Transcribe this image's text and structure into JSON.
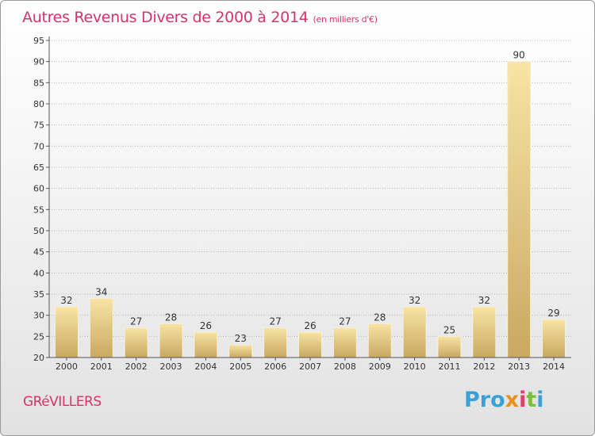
{
  "header": {
    "title": "Autres Revenus Divers de 2000 à 2014",
    "unit": "(en milliers d'€)"
  },
  "footer": {
    "town": "GRéVILLERS",
    "logo": {
      "p1": "Pro",
      "p2": "x",
      "p3": "i",
      "p4": "t",
      "p5": "i"
    }
  },
  "chart_data": {
    "type": "bar",
    "title": "Autres Revenus Divers de 2000 à 2014",
    "subtitle": "(en milliers d'€)",
    "xlabel": "",
    "ylabel": "",
    "categories": [
      "2000",
      "2001",
      "2002",
      "2003",
      "2004",
      "2005",
      "2006",
      "2007",
      "2008",
      "2009",
      "2010",
      "2011",
      "2012",
      "2013",
      "2014"
    ],
    "values": [
      32,
      34,
      27,
      28,
      26,
      23,
      27,
      26,
      27,
      28,
      32,
      25,
      32,
      90,
      29
    ],
    "ylim": [
      20,
      95
    ],
    "yticks": [
      20,
      25,
      30,
      35,
      40,
      45,
      50,
      55,
      60,
      65,
      70,
      75,
      80,
      85,
      90,
      95
    ],
    "grid": true,
    "colors": {
      "bar_light": "#f7df9a",
      "bar_dark": "#c8a65a",
      "grid": "#b8b8b8",
      "text": "#333333",
      "accent": "#d6336c"
    }
  }
}
